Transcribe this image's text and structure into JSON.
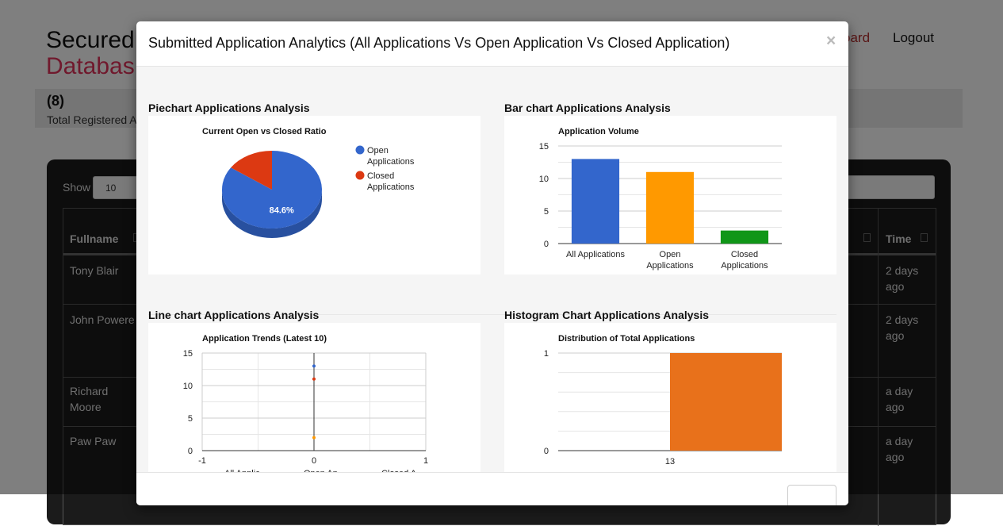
{
  "page": {
    "brand_top": "Secured",
    "brand_bottom": "Databas",
    "nav": {
      "dashboard": "oard",
      "logout": "Logout"
    },
    "stats": {
      "count": "(8)",
      "label": "Total Registered A"
    },
    "table": {
      "show_label": "Show",
      "show_value": "10",
      "headers": {
        "name": "Fullname",
        "time": "Time"
      },
      "rows": [
        {
          "name": "Tony Blair",
          "time": "2 days ago"
        },
        {
          "name": "John Powere",
          "time": "2 days ago"
        },
        {
          "name": "Richard Moore",
          "time": "a day ago"
        },
        {
          "name": "Paw Paw",
          "time": "a day ago"
        }
      ]
    }
  },
  "modal": {
    "title": "Submitted Application Analytics (All Applications Vs Open Application Vs Closed Application)",
    "close_label": "×",
    "sections": {
      "pie": "Piechart Applications Analysis",
      "bar": "Bar chart Applications Analysis",
      "line": "Line chart Applications Analysis",
      "histogram": "Histogram Chart Applications Analysis"
    }
  },
  "colors": {
    "blue": "#3366cc",
    "red": "#dc3912",
    "orange": "#ff9900",
    "green": "#109618",
    "hist": "#e8711b"
  },
  "chart_data": [
    {
      "type": "pie",
      "title": "Current Open vs Closed Ratio",
      "labels": [
        "Open Applications",
        "Closed Applications"
      ],
      "values": [
        84.6,
        15.4
      ],
      "slice_label": "84.6%",
      "colors": [
        "#3366cc",
        "#dc3912"
      ],
      "legend": "right"
    },
    {
      "type": "bar",
      "title": "Application Volume",
      "categories": [
        "All Applications",
        "Open Applications",
        "Closed Applications"
      ],
      "category_lines": [
        [
          "All Applications"
        ],
        [
          "Open",
          "Applications"
        ],
        [
          "Closed",
          "Applications"
        ]
      ],
      "values": [
        13,
        11,
        2
      ],
      "colors": [
        "#3366cc",
        "#ff9900",
        "#109618"
      ],
      "ylim": [
        0,
        15
      ],
      "yticks": [
        "0",
        "5",
        "10",
        "15"
      ],
      "grid": true
    },
    {
      "type": "line",
      "title": "Application Trends (Latest 10)",
      "x": [
        0
      ],
      "series": [
        {
          "name": "All Applic…",
          "values": [
            13
          ],
          "color": "#3366cc"
        },
        {
          "name": "Open Ap…",
          "values": [
            11
          ],
          "color": "#dc3912"
        },
        {
          "name": "Closed A…",
          "values": [
            2
          ],
          "color": "#ff9900"
        }
      ],
      "xlim": [
        -1,
        1
      ],
      "ylim": [
        0,
        15
      ],
      "xticks": [
        "-1",
        "0",
        "1"
      ],
      "yticks": [
        "0",
        "5",
        "10",
        "15"
      ],
      "legend": "bottom",
      "grid": true
    },
    {
      "type": "bar",
      "title": "Distribution of Total Applications",
      "categories": [
        "13"
      ],
      "values": [
        1
      ],
      "color": "#e8711b",
      "ylim": [
        0,
        1
      ],
      "yticks": [
        "0",
        "1"
      ],
      "grid": true
    }
  ]
}
